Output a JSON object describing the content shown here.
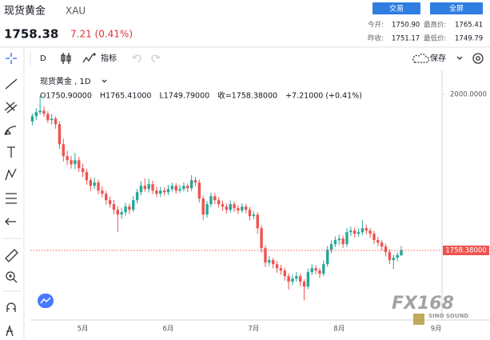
{
  "header": {
    "name": "现货黄金",
    "symbol": "XAU",
    "price": "1758.38",
    "change": "7.21 (0.41%)",
    "buttons": [
      "交易",
      "全屏"
    ],
    "stats": [
      [
        "今开:",
        "1750.90"
      ],
      [
        "最高价:",
        "1765.41"
      ],
      [
        "昨收:",
        "1751.17"
      ],
      [
        "最低价:",
        "1749.79"
      ]
    ]
  },
  "toolbar": {
    "interval": "D",
    "indicators": "指标",
    "save": "保存"
  },
  "watermark": {
    "title": "FX168",
    "subtitle": "SINO SOUND"
  },
  "chart_data": {
    "type": "candlestick",
    "legend_title": "现货黄金 , 1D",
    "legend_values": [
      "O1750.90000",
      "H1765.41000",
      "L1749.79000",
      "收=1758.38000",
      "+7.21000 (+0.41%)"
    ],
    "categories": [
      null,
      null,
      null,
      null,
      null,
      null,
      null,
      null,
      null,
      null,
      null,
      null,
      null,
      "5月",
      null,
      null,
      null,
      null,
      null,
      null,
      null,
      null,
      null,
      null,
      null,
      null,
      null,
      null,
      null,
      null,
      null,
      null,
      null,
      null,
      null,
      "6月",
      null,
      null,
      null,
      null,
      null,
      null,
      null,
      null,
      null,
      null,
      null,
      null,
      null,
      null,
      null,
      null,
      null,
      null,
      null,
      null,
      null,
      "7月",
      null,
      null,
      null,
      null,
      null,
      null,
      null,
      null,
      null,
      null,
      null,
      null,
      null,
      null,
      null,
      null,
      null,
      null,
      null,
      null,
      null,
      "8月",
      null,
      null,
      null,
      null,
      null,
      null,
      null,
      null,
      null,
      null,
      null,
      null,
      null,
      null,
      null,
      null,
      null,
      null,
      null,
      null,
      null,
      null,
      null,
      null,
      "9月",
      null
    ],
    "open": [
      1958.0,
      1966.3,
      1972.5,
      1974.9,
      1970.0,
      1960.1,
      1962.5,
      1953.9,
      1922.9,
      1904.3,
      1898.1,
      1891.9,
      1898.1,
      1885.7,
      1879.6,
      1867.2,
      1858.5,
      1863.5,
      1851.1,
      1846.1,
      1836.2,
      1830.0,
      1821.3,
      1813.9,
      1817.6,
      1826.3,
      1821.3,
      1836.2,
      1848.6,
      1858.5,
      1853.5,
      1861.0,
      1851.1,
      1846.1,
      1851.1,
      1848.6,
      1853.5,
      1858.5,
      1851.1,
      1853.5,
      1858.5,
      1854.8,
      1867.2,
      1863.5,
      1838.7,
      1813.9,
      1830.0,
      1842.4,
      1836.2,
      1830.0,
      1826.3,
      1821.3,
      1830.0,
      1823.8,
      1820.1,
      1826.3,
      1821.3,
      1811.4,
      1813.9,
      1792.8,
      1761.9,
      1739.6,
      1743.3,
      1737.1,
      1730.9,
      1727.2,
      1718.5,
      1709.9,
      1714.8,
      1718.5,
      1709.9,
      1702.4,
      1724.7,
      1730.9,
      1727.2,
      1722.2,
      1737.1,
      1759.4,
      1768.1,
      1774.3,
      1776.7,
      1768.1,
      1786.6,
      1789.1,
      1784.2,
      1786.6,
      1792.8,
      1789.1,
      1784.2,
      1774.3,
      1770.5,
      1764.4,
      1755.7,
      1743.3,
      1747.0,
      1750.9,
      null,
      null,
      null,
      null,
      null,
      null,
      null,
      null,
      null,
      null
    ],
    "high": [
      1970.5,
      1978.8,
      1998.0,
      1981.2,
      1974.1,
      1969.7,
      1966.0,
      1958.3,
      1931.4,
      1912.7,
      1905.0,
      1909.6,
      1903.2,
      1892.8,
      1884.4,
      1871.5,
      1870.9,
      1868.0,
      1857.9,
      1850.3,
      1842.1,
      1836.6,
      1827.0,
      1824.2,
      1832.1,
      1830.8,
      1842.5,
      1853.7,
      1865.4,
      1870.0,
      1869.3,
      1866.2,
      1857.4,
      1856.8,
      1856.0,
      1859.7,
      1863.1,
      1862.6,
      1860.2,
      1864.0,
      1862.3,
      1874.9,
      1872.4,
      1868.1,
      1843.0,
      1834.6,
      1847.8,
      1846.9,
      1840.5,
      1835.2,
      1831.0,
      1835.8,
      1833.9,
      1828.1,
      1831.5,
      1830.4,
      1825.7,
      1819.2,
      1817.6,
      1797.0,
      1766.3,
      1749.5,
      1747.1,
      1741.8,
      1736.0,
      1731.3,
      1722.9,
      1720.6,
      1725.3,
      1722.4,
      1713.6,
      1730.2,
      1736.8,
      1735.4,
      1731.0,
      1742.9,
      1765.2,
      1773.6,
      1780.0,
      1782.8,
      1781.2,
      1793.0,
      1795.4,
      1793.7,
      1792.5,
      1805.3,
      1798.1,
      1793.2,
      1788.6,
      1779.1,
      1774.6,
      1768.9,
      1760.3,
      1751.8,
      1755.2,
      1765.41,
      null,
      null,
      null,
      null,
      null,
      null,
      null,
      null,
      null,
      null
    ],
    "low": [
      1952.1,
      1960.2,
      1968.4,
      1965.3,
      1955.8,
      1953.2,
      1946.9,
      1915.6,
      1896.2,
      1890.5,
      1885.3,
      1884.0,
      1880.1,
      1871.9,
      1860.2,
      1850.6,
      1853.4,
      1845.2,
      1840.7,
      1829.4,
      1824.8,
      1814.3,
      1786.6,
      1807.5,
      1812.0,
      1815.1,
      1817.9,
      1831.0,
      1843.8,
      1849.2,
      1848.0,
      1845.7,
      1840.9,
      1841.3,
      1843.2,
      1844.0,
      1849.4,
      1845.9,
      1847.3,
      1849.8,
      1848.7,
      1850.2,
      1857.6,
      1832.5,
      1805.2,
      1809.1,
      1825.3,
      1830.1,
      1824.6,
      1819.7,
      1815.4,
      1817.0,
      1818.2,
      1814.6,
      1816.3,
      1815.8,
      1804.9,
      1806.5,
      1784.3,
      1754.6,
      1732.8,
      1734.2,
      1730.5,
      1723.9,
      1720.4,
      1711.7,
      1697.8,
      1704.2,
      1710.0,
      1703.1,
      1681.0,
      1698.3,
      1720.1,
      1721.6,
      1715.8,
      1718.7,
      1733.0,
      1754.1,
      1763.5,
      1766.9,
      1762.4,
      1764.0,
      1780.8,
      1778.2,
      1779.6,
      1782.0,
      1783.5,
      1777.9,
      1768.0,
      1764.8,
      1758.2,
      1749.1,
      1736.9,
      1729.5,
      1741.6,
      1749.79,
      null,
      null,
      null,
      null,
      null,
      null,
      null,
      null,
      null,
      null
    ],
    "close": [
      1966.3,
      1972.5,
      1974.9,
      1970.0,
      1960.1,
      1962.5,
      1953.9,
      1922.9,
      1904.3,
      1898.1,
      1891.9,
      1898.1,
      1885.7,
      1879.6,
      1867.2,
      1858.5,
      1863.5,
      1851.1,
      1846.1,
      1836.2,
      1830.0,
      1821.3,
      1813.9,
      1817.6,
      1826.3,
      1821.3,
      1836.2,
      1848.6,
      1858.5,
      1853.5,
      1861.0,
      1851.1,
      1846.1,
      1851.1,
      1848.6,
      1853.5,
      1858.5,
      1851.1,
      1853.5,
      1858.5,
      1854.8,
      1867.2,
      1863.5,
      1838.7,
      1813.9,
      1830.0,
      1842.4,
      1836.2,
      1830.0,
      1826.3,
      1821.3,
      1830.0,
      1823.8,
      1820.1,
      1826.3,
      1821.3,
      1811.4,
      1813.9,
      1792.8,
      1761.9,
      1739.6,
      1743.3,
      1737.1,
      1730.9,
      1727.2,
      1718.5,
      1709.9,
      1714.8,
      1718.5,
      1709.9,
      1702.4,
      1724.7,
      1730.9,
      1727.2,
      1722.2,
      1737.1,
      1759.4,
      1768.1,
      1774.3,
      1776.7,
      1768.1,
      1786.6,
      1789.1,
      1784.2,
      1786.6,
      1792.8,
      1789.1,
      1784.2,
      1774.3,
      1770.5,
      1764.4,
      1755.7,
      1743.3,
      1747.0,
      1751.2,
      1758.38,
      null,
      null,
      null,
      null,
      null,
      null,
      null,
      null,
      null,
      null
    ],
    "up_color": "#26a69a",
    "down_color": "#ef5350",
    "last_price": {
      "value": 1758.38,
      "label": "1758.38000"
    },
    "ylim": [
      1650.6,
      2037.2
    ],
    "yticks": [
      {
        "value": 2000,
        "label": "2000.0000"
      }
    ],
    "grid": false
  }
}
